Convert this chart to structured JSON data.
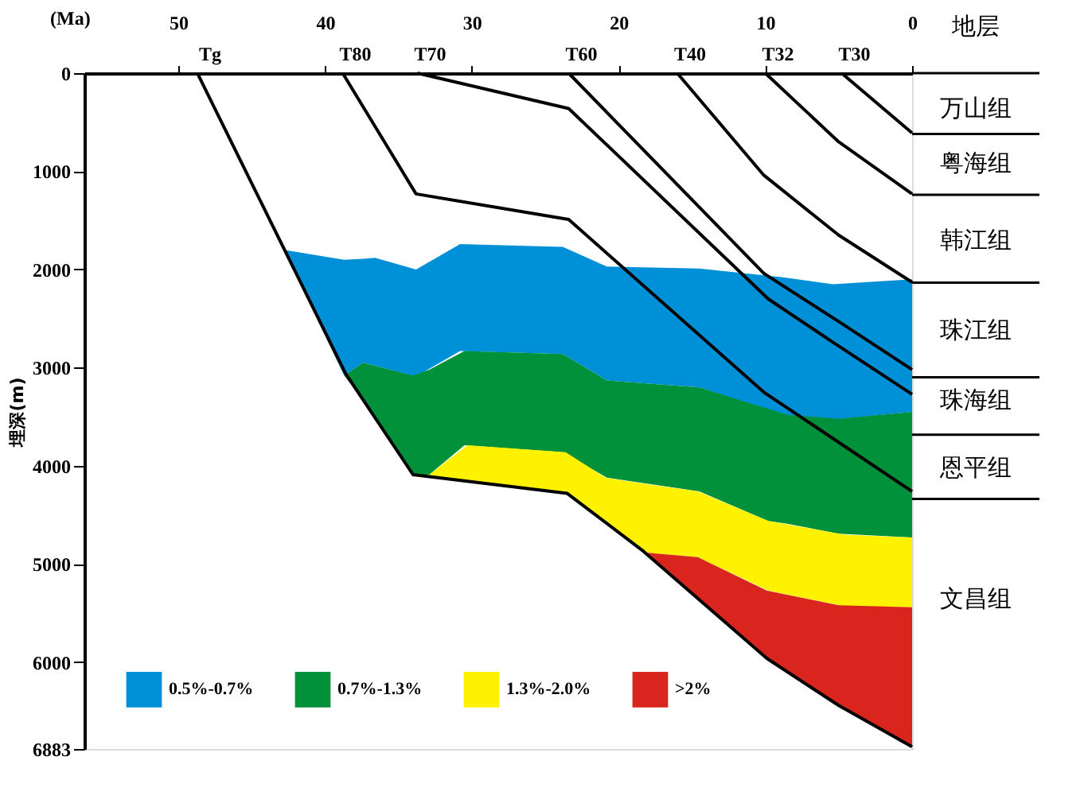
{
  "chart_data": {
    "type": "line",
    "xlabel": "(Ma)",
    "ylabel": "埋深(m)",
    "xlim": [
      56.4,
      0
    ],
    "xticks": [
      50,
      40,
      30,
      20,
      10,
      0
    ],
    "ylim": [
      6883,
      0
    ],
    "yticks": [
      0,
      1000,
      2000,
      3000,
      4000,
      5000,
      6000,
      6883
    ],
    "grid": false,
    "legend": "bottom left",
    "series": [
      {
        "type": "area",
        "name": "0.5%-0.7%",
        "color": "#0090d8",
        "x": [
          42.8,
          38.7,
          37.4,
          36.6,
          33.8,
          30.8,
          23.8,
          20.8,
          14.5,
          8.8,
          5.4,
          0
        ],
        "values": [
          null,
          null,
          null,
          null,
          null,
          null,
          null,
          null,
          null,
          null,
          null,
          null
        ],
        "lower": [
          1800,
          1900,
          1890,
          1880,
          2000,
          1740,
          1770,
          1970,
          1990,
          2080,
          2150,
          2100
        ],
        "upper": [
          1800,
          3080,
          2950,
          2980,
          3090,
          2830,
          2860,
          3130,
          3200,
          3480,
          3530,
          3450
        ]
      },
      {
        "type": "area",
        "name": "0.7%-1.3%",
        "color": "#00913a",
        "x": [
          38.7,
          37.4,
          34.0,
          32.9,
          30.5,
          23.8,
          20.8,
          14.5,
          9.8,
          8.5,
          5.0,
          0
        ],
        "values": [
          null,
          null,
          null,
          null,
          null,
          null,
          null,
          null,
          null,
          null,
          null,
          null
        ],
        "lower": [
          3080,
          2950,
          3080,
          3020,
          2830,
          2860,
          3130,
          3200,
          3420,
          3480,
          3520,
          3450
        ],
        "upper": [
          3080,
          3330,
          4090,
          4090,
          3790,
          3860,
          4120,
          4260,
          4560,
          4590,
          4690,
          4730
        ]
      },
      {
        "type": "area",
        "name": "1.3%-2.0%",
        "color": "#fff200",
        "x": [
          32.9,
          30.3,
          23.6,
          20.9,
          18.3,
          14.6,
          9.8,
          4.6,
          0
        ],
        "values": [
          null,
          null,
          null,
          null,
          null,
          null,
          null,
          null,
          null
        ],
        "lower": [
          4090,
          3790,
          3860,
          4120,
          4180,
          4260,
          4560,
          4700,
          4730
        ],
        "upper": [
          4110,
          4160,
          4280,
          4580,
          4880,
          4930,
          5270,
          5430,
          5440
        ]
      },
      {
        "type": "area",
        "name": ">2%",
        "color": "#d9251d",
        "x": [
          18.3,
          14.6,
          9.9,
          5.0,
          0
        ],
        "values": [
          null,
          null,
          null,
          null,
          null
        ],
        "lower": [
          4880,
          4930,
          5270,
          5420,
          5440
        ],
        "upper": [
          4880,
          5350,
          5960,
          6440,
          6860
        ]
      },
      {
        "color": "#000000",
        "x": [
          48.7,
          38.6,
          34.0,
          23.5,
          18.3,
          9.9,
          5.0,
          0
        ],
        "values": [
          0,
          3060,
          4090,
          4280,
          4870,
          5960,
          6440,
          6860
        ]
      },
      {
        "color": "#000000",
        "x": [
          38.8,
          33.8,
          23.4,
          10.1,
          0
        ],
        "values": [
          0,
          1230,
          1490,
          3250,
          4260
        ]
      },
      {
        "color": "#000000",
        "x": [
          33.7,
          23.4,
          9.8,
          5.3,
          0
        ],
        "values": [
          0,
          360,
          2300,
          2750,
          3270
        ]
      },
      {
        "color": "#000000",
        "x": [
          23.4,
          10.1,
          5.0,
          0
        ],
        "values": [
          0,
          2040,
          2530,
          3020
        ]
      },
      {
        "color": "#000000",
        "x": [
          16.0,
          10.1,
          5.0,
          0
        ],
        "values": [
          0,
          1040,
          1650,
          2130
        ]
      },
      {
        "color": "#000000",
        "x": [
          10.0,
          5.0,
          0
        ],
        "values": [
          0,
          700,
          1230
        ]
      },
      {
        "color": "#000000",
        "x": [
          4.8,
          0
        ],
        "values": [
          0,
          610
        ]
      }
    ],
    "annotations": [
      {
        "text": "Tg",
        "x": 48.7,
        "y": 0
      },
      {
        "text": "T80",
        "x": 38.8,
        "y": 0
      },
      {
        "text": "T70",
        "x": 33.7,
        "y": 0
      },
      {
        "text": "T60",
        "x": 23.4,
        "y": 0
      },
      {
        "text": "T40",
        "x": 16.0,
        "y": 0
      },
      {
        "text": "T32",
        "x": 10.0,
        "y": 0
      },
      {
        "text": "T30",
        "x": 4.8,
        "y": 0
      },
      "地层",
      "万山组",
      "粤海组",
      "韩江组",
      "珠江组",
      "珠海组",
      "恩平组",
      "文昌组"
    ]
  }
}
